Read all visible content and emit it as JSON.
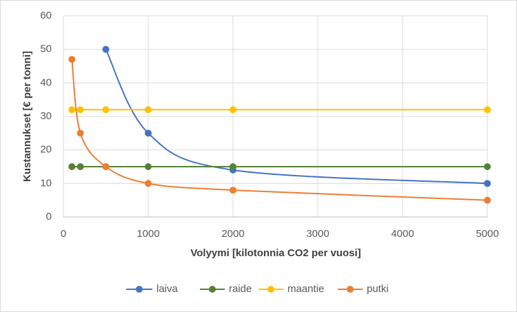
{
  "chart_data": {
    "type": "scatter",
    "x_label": "Volyymi [kilotonnia CO2 per vuosi]",
    "y_label": "Kustannukset [€ per tonni]",
    "xlim": [
      0,
      5000
    ],
    "xticks": [
      0,
      1000,
      2000,
      3000,
      4000,
      5000
    ],
    "ylim": [
      0,
      60
    ],
    "yticks": [
      0,
      10,
      20,
      30,
      40,
      50,
      60
    ],
    "grid": true,
    "legend": "bottom",
    "series": [
      {
        "name": "laiva",
        "color": "#4472c4",
        "x": [
          500,
          1000,
          2000,
          5000
        ],
        "values": [
          50,
          25,
          14,
          10
        ]
      },
      {
        "name": "raide",
        "color": "#548235",
        "x": [
          100,
          200,
          500,
          1000,
          2000,
          5000
        ],
        "values": [
          15,
          15,
          15,
          15,
          15,
          15
        ]
      },
      {
        "name": "maantie",
        "color": "#ffc000",
        "x": [
          100,
          200,
          500,
          1000,
          2000,
          5000
        ],
        "values": [
          32,
          32,
          32,
          32,
          32,
          32
        ]
      },
      {
        "name": "putki",
        "color": "#ed7d31",
        "x": [
          100,
          200,
          500,
          1000,
          2000,
          5000
        ],
        "values": [
          47,
          25,
          15,
          10,
          8,
          5
        ]
      }
    ]
  }
}
